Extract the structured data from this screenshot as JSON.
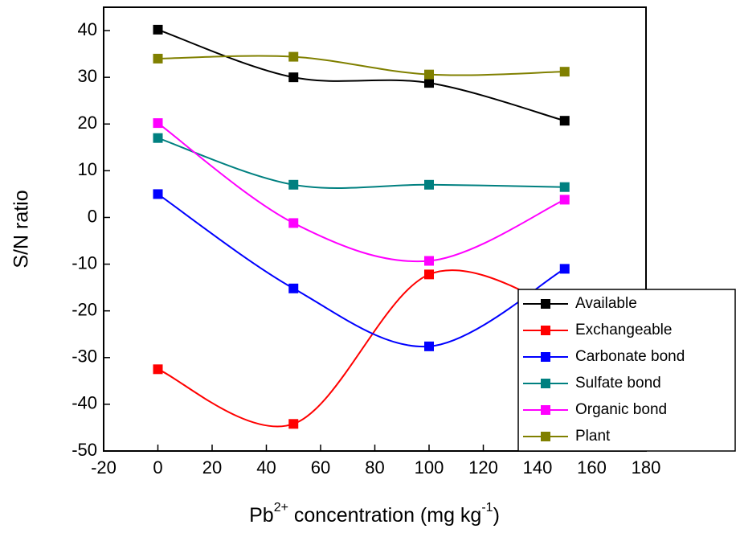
{
  "chart_data": {
    "type": "line",
    "smooth": true,
    "marker": "square",
    "y_label": "S/N ratio",
    "x_label": [
      {
        "text": "Pb"
      },
      {
        "text": "2+",
        "sup": true
      },
      {
        "text": " concentration (mg kg"
      },
      {
        "text": "-1",
        "sup": true
      },
      {
        "text": ")"
      }
    ],
    "x": [
      0,
      50,
      100,
      150
    ],
    "xlim": [
      -20,
      180
    ],
    "xticks": [
      -20,
      0,
      20,
      40,
      60,
      80,
      100,
      120,
      140,
      160,
      180
    ],
    "ylim": [
      -50,
      45
    ],
    "yticks": [
      -50,
      -40,
      -30,
      -20,
      -10,
      0,
      10,
      20,
      30,
      40
    ],
    "grid": false,
    "legend": "lower right",
    "series": [
      {
        "name": "Available",
        "color": "#000000",
        "values": [
          40.2,
          30,
          28.8,
          20.7
        ]
      },
      {
        "name": "Exchangeable",
        "color": "#ff0000",
        "values": [
          -32.5,
          -44.2,
          -12.2,
          -20
        ]
      },
      {
        "name": "Carbonate bond",
        "color": "#0000ff",
        "values": [
          5,
          -15.2,
          -27.6,
          -11
        ]
      },
      {
        "name": "Sulfate bond",
        "color": "#008080",
        "values": [
          17,
          7,
          7,
          6.5
        ]
      },
      {
        "name": "Organic bond",
        "color": "#ff00ff",
        "values": [
          20.2,
          -1.2,
          -9.3,
          3.8
        ]
      },
      {
        "name": "Plant",
        "color": "#808000",
        "values": [
          34,
          34.4,
          30.6,
          31.2
        ]
      }
    ]
  }
}
